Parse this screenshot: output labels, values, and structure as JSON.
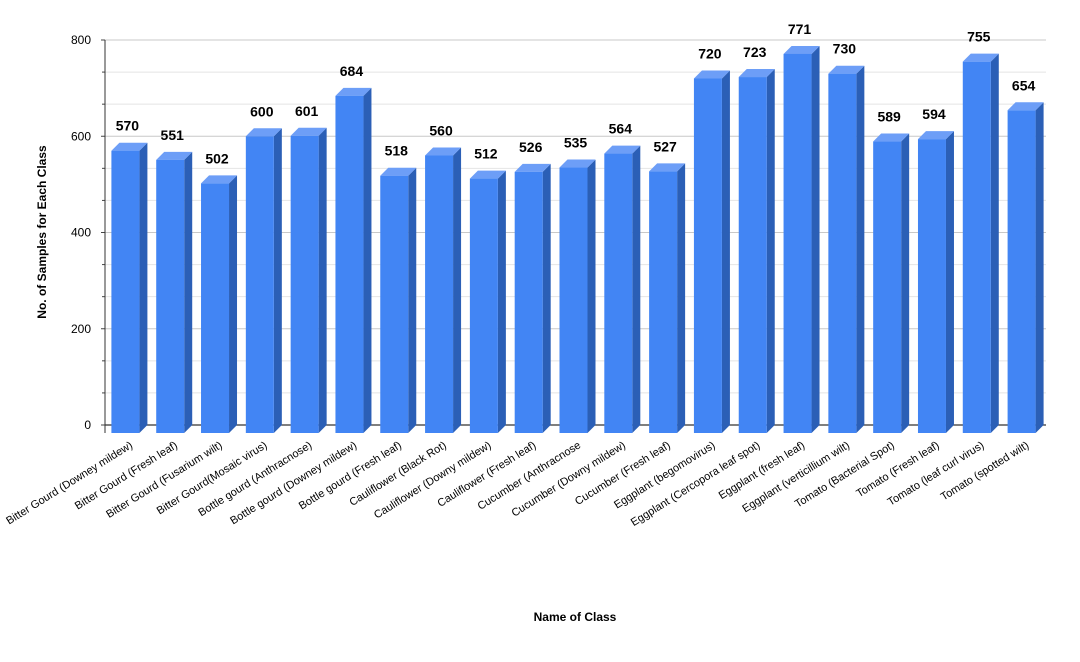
{
  "chart_data": {
    "type": "bar",
    "title": "",
    "xlabel": "Name of Class",
    "ylabel": "No. of Samples for Each Class",
    "ylim": [
      0,
      800
    ],
    "yticks": [
      0,
      200,
      400,
      600,
      800
    ],
    "grid": true,
    "style": "3d",
    "bar_color": "#4285f4",
    "categories": [
      "Bitter Gourd (Downey mildew)",
      "Bitter Gourd (Fresh leaf)",
      "Bitter Gourd (Fusarium wilt)",
      "Bitter Gourd(Mosaic virus)",
      "Bottle gourd (Anthracnose)",
      "Bottle gourd (Downey mildew)",
      "Bottle gourd (Fresh leaf)",
      "Cauliflower (Black Rot)",
      "Cauliflower (Downy mildew)",
      "Cauliflower (Fresh leaf)",
      "Cucumber (Anthracnose",
      "Cucumber (Downy mildew)",
      "Cucumber (Fresh leaf)",
      "Eggplant (begomovirus)",
      "Eggplant (Cercopora leaf spot)",
      "Eggplant (fresh leaf)",
      "Eggplant (verticillium wilt)",
      "Tomato (Bacterial Spot)",
      "Tomato (Fresh leaf)",
      "Tomato (leaf curl virus)",
      "Tomato (spotted wilt)"
    ],
    "values": [
      570,
      551,
      502,
      600,
      601,
      684,
      518,
      560,
      512,
      526,
      535,
      564,
      527,
      720,
      723,
      771,
      730,
      589,
      594,
      755,
      654
    ]
  }
}
